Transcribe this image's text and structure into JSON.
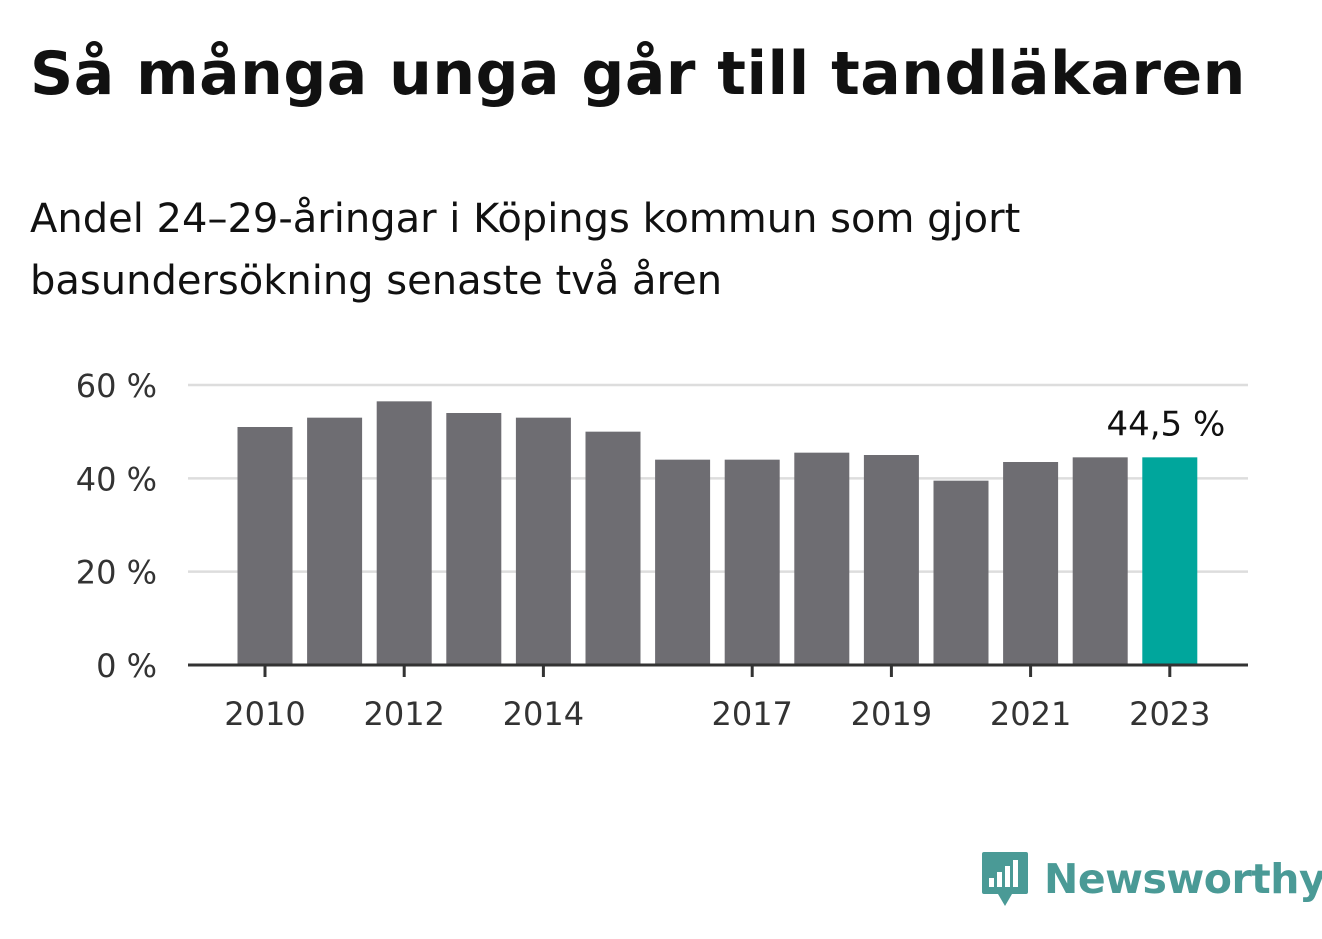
{
  "title": "Så många unga går till tandläkaren",
  "subtitle": "Andel 24–29-åringar i Köpings kommun som gjort basundersökning senaste två åren",
  "brand": {
    "name": "Newsworthy",
    "color": "#4a9a96",
    "icon": "newsworthy-logo-icon"
  },
  "colors": {
    "bar": "#6e6d72",
    "highlight": "#00a69c",
    "grid": "#dddddd",
    "axis": "#333333"
  },
  "chart_data": {
    "type": "bar",
    "x": [
      2010,
      2011,
      2012,
      2013,
      2014,
      2015,
      2016,
      2017,
      2018,
      2019,
      2020,
      2021,
      2022,
      2023
    ],
    "values": [
      51.0,
      53.0,
      56.5,
      54.0,
      53.0,
      50.0,
      44.0,
      44.0,
      45.5,
      45.0,
      39.5,
      43.5,
      44.5,
      44.5
    ],
    "tick_labels": [
      "2010",
      "2012",
      "2014",
      "2017",
      "2019",
      "2021",
      "2023"
    ],
    "y_ticks": [
      {
        "value": 0,
        "label": "0 %"
      },
      {
        "value": 20,
        "label": "20 %"
      },
      {
        "value": 40,
        "label": "40 %"
      },
      {
        "value": 60,
        "label": "60 %"
      }
    ],
    "ylim": [
      0,
      60
    ],
    "highlight_index": 13,
    "highlight_label": "44,5 %",
    "grid": true,
    "xlabel": "",
    "ylabel": ""
  }
}
